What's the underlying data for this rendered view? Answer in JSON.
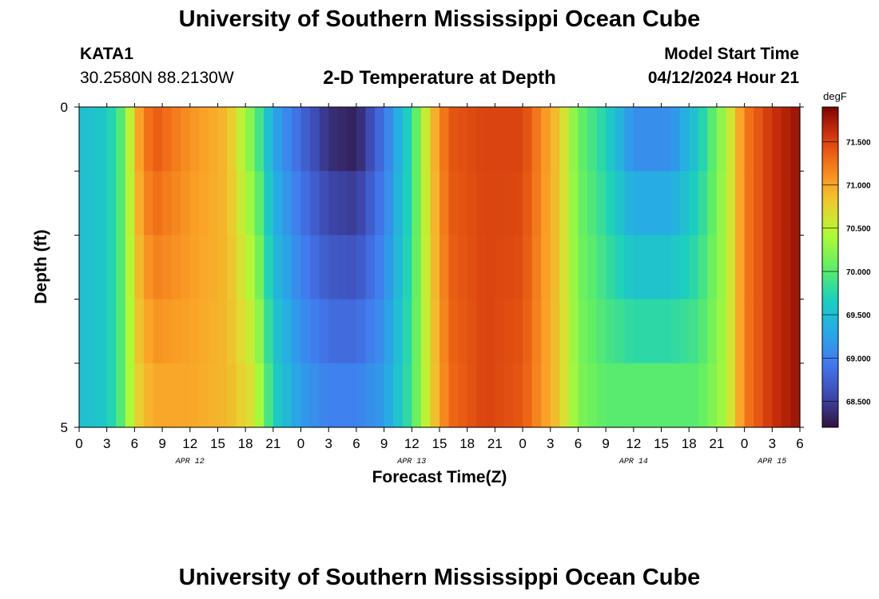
{
  "header": {
    "title": "University of Southern Mississippi Ocean Cube",
    "station_id": "KATA1",
    "station_coords": "30.2580N  88.2130W",
    "chart_heading": "2-D Temperature at Depth",
    "model_label": "Model Start Time",
    "model_time": "04/12/2024 Hour 21"
  },
  "footer": {
    "title": "University of Southern Mississippi Ocean Cube"
  },
  "chart_data": {
    "type": "heatmap",
    "title": "2-D Temperature at Depth",
    "xlabel": "Forecast Time(Z)",
    "ylabel": "Depth (ft)",
    "x_tick_labels": [
      "0",
      "3",
      "6",
      "9",
      "12",
      "15",
      "18",
      "21",
      "0",
      "3",
      "6",
      "9",
      "12",
      "15",
      "18",
      "21",
      "0",
      "3",
      "6",
      "9",
      "12",
      "15",
      "18",
      "21",
      "0",
      "3",
      "6"
    ],
    "date_labels": [
      {
        "label": "APR 12",
        "hour_index": 4
      },
      {
        "label": "APR 13",
        "hour_index": 12
      },
      {
        "label": "APR 14",
        "hour_index": 20
      },
      {
        "label": "APR 15",
        "hour_index": 25
      }
    ],
    "y_tick_labels": [
      "0",
      "5"
    ],
    "ylim": [
      0,
      5
    ],
    "depth_levels": 5,
    "hours_per_step": 1,
    "total_hours": 78,
    "colorbar": {
      "unit": "degF",
      "min": 68.2,
      "max": 71.9,
      "tick_values": [
        68.5,
        69.0,
        69.5,
        70.0,
        70.5,
        71.0,
        71.5
      ],
      "tick_labels": [
        "68.500",
        "69.000",
        "69.500",
        "70.000",
        "70.500",
        "71.000",
        "71.500"
      ]
    },
    "temperature_key_hours": [
      0,
      3,
      5,
      6,
      8,
      12,
      16,
      19,
      21,
      24,
      27,
      30,
      33,
      36,
      38,
      40,
      44,
      48,
      52,
      54,
      57,
      60,
      64,
      67,
      70,
      72,
      75,
      78
    ],
    "temperature_surface": [
      69.5,
      69.6,
      70.1,
      70.9,
      71.4,
      71.1,
      70.9,
      70.1,
      69.3,
      68.8,
      68.4,
      68.3,
      68.9,
      69.8,
      70.8,
      71.4,
      71.5,
      71.5,
      70.8,
      70.1,
      69.7,
      69.1,
      69.1,
      69.6,
      70.4,
      71.2,
      71.6,
      71.8
    ],
    "temperature_bottom": [
      69.5,
      69.6,
      70.1,
      70.7,
      71.0,
      71.0,
      70.9,
      70.6,
      69.7,
      69.2,
      69.0,
      69.0,
      69.2,
      69.9,
      70.7,
      71.3,
      71.5,
      71.4,
      70.8,
      70.2,
      70.0,
      70.0,
      70.0,
      70.0,
      70.4,
      71.2,
      71.6,
      71.8
    ]
  }
}
